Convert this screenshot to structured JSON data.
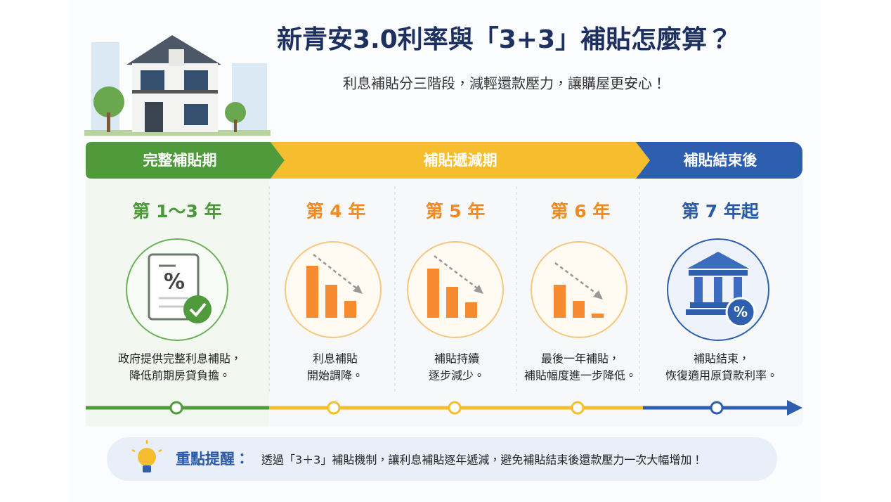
{
  "header": {
    "title": "新青安3.0利率與「3+3」補貼怎麼算？",
    "subtitle": "利息補貼分三階段，減輕還款壓力，讓購屋更安心！"
  },
  "phases": [
    {
      "label": "完整補貼期"
    },
    {
      "label": "補貼遞減期"
    },
    {
      "label": "補貼結束後"
    }
  ],
  "columns": [
    {
      "year": "第 1～3 年",
      "icon_text": "%",
      "description": [
        "政府提供完整利息補貼，",
        "降低前期房貸負擔。"
      ]
    },
    {
      "year": "第 4 年",
      "description": [
        "利息補貼",
        "開始調降。"
      ]
    },
    {
      "year": "第 5 年",
      "description": [
        "補貼持續",
        "逐步減少。"
      ]
    },
    {
      "year": "第 6 年",
      "description": [
        "最後一年補貼，",
        "補貼幅度進一步降低。"
      ]
    },
    {
      "year": "第 7 年起",
      "icon_text": "%",
      "description": [
        "補貼結束，",
        "恢復適用原貸款利率。"
      ]
    }
  ],
  "reminder": {
    "label": "重點提醒：",
    "text": "透過「3＋3」補貼機制，讓利息補貼逐年遞減，避免補貼結束後還款壓力一次大幅增加！"
  }
}
